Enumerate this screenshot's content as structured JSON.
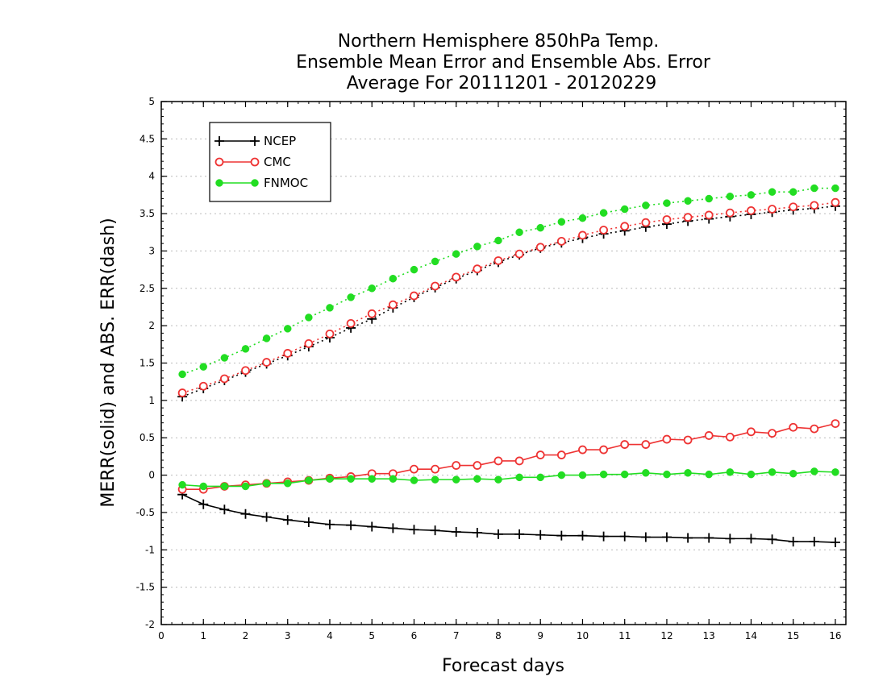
{
  "chart_data": {
    "type": "line",
    "title_lines": [
      "Northern Hemisphere 850hPa Temp.",
      "Ensemble Mean Error and Ensemble Abs. Error",
      "Average For 20111201 - 20120229"
    ],
    "xlabel": "Forecast days",
    "ylabel": "MERR(solid) and ABS. ERR(dash)",
    "xlim": [
      0,
      16.25
    ],
    "ylim": [
      -2,
      5
    ],
    "xticks": [
      "0",
      "1",
      "2",
      "3",
      "4",
      "5",
      "6",
      "7",
      "8",
      "9",
      "10",
      "11",
      "12",
      "13",
      "14",
      "15",
      "16"
    ],
    "yticks": [
      "5",
      "4.5",
      "4",
      "3.5",
      "3",
      "2.5",
      "2",
      "1.5",
      "1",
      "0.5",
      "0",
      "-0.5",
      "-1",
      "-1.5",
      "-2"
    ],
    "grid": true,
    "legend_position": "top-left",
    "x": [
      0.5,
      1,
      1.5,
      2,
      2.5,
      3,
      3.5,
      4,
      4.5,
      5,
      5.5,
      6,
      6.5,
      7,
      7.5,
      8,
      8.5,
      9,
      9.5,
      10,
      10.5,
      11,
      11.5,
      12,
      12.5,
      13,
      13.5,
      14,
      14.5,
      15,
      15.5,
      16
    ],
    "series": [
      {
        "name": "NCEP",
        "color": "#000000",
        "marker": "plus",
        "abs_error": [
          1.05,
          1.16,
          1.27,
          1.38,
          1.49,
          1.6,
          1.72,
          1.84,
          1.97,
          2.09,
          2.24,
          2.38,
          2.51,
          2.63,
          2.74,
          2.85,
          2.95,
          3.04,
          3.11,
          3.17,
          3.23,
          3.27,
          3.32,
          3.36,
          3.4,
          3.43,
          3.46,
          3.49,
          3.52,
          3.55,
          3.57,
          3.6
        ],
        "mean_error": [
          -0.26,
          -0.39,
          -0.46,
          -0.52,
          -0.56,
          -0.6,
          -0.63,
          -0.66,
          -0.67,
          -0.69,
          -0.71,
          -0.73,
          -0.74,
          -0.76,
          -0.77,
          -0.79,
          -0.79,
          -0.8,
          -0.81,
          -0.81,
          -0.82,
          -0.82,
          -0.83,
          -0.83,
          -0.84,
          -0.84,
          -0.85,
          -0.85,
          -0.86,
          -0.89,
          -0.89,
          -0.9
        ]
      },
      {
        "name": "CMC",
        "color": "#ee3333",
        "marker": "open-circle",
        "abs_error": [
          1.1,
          1.19,
          1.29,
          1.4,
          1.51,
          1.63,
          1.76,
          1.89,
          2.03,
          2.16,
          2.28,
          2.4,
          2.53,
          2.65,
          2.76,
          2.87,
          2.96,
          3.05,
          3.13,
          3.21,
          3.28,
          3.33,
          3.38,
          3.42,
          3.45,
          3.48,
          3.51,
          3.54,
          3.56,
          3.59,
          3.61,
          3.65
        ],
        "mean_error": [
          -0.19,
          -0.19,
          -0.15,
          -0.13,
          -0.11,
          -0.09,
          -0.07,
          -0.04,
          -0.02,
          0.02,
          0.02,
          0.08,
          0.08,
          0.13,
          0.13,
          0.19,
          0.19,
          0.27,
          0.27,
          0.34,
          0.34,
          0.41,
          0.41,
          0.48,
          0.47,
          0.53,
          0.51,
          0.58,
          0.56,
          0.64,
          0.62,
          0.69
        ]
      },
      {
        "name": "FNMOC",
        "color": "#22dd22",
        "marker": "filled-circle",
        "abs_error": [
          1.35,
          1.45,
          1.57,
          1.69,
          1.83,
          1.96,
          2.11,
          2.24,
          2.38,
          2.5,
          2.63,
          2.75,
          2.86,
          2.96,
          3.06,
          3.14,
          3.25,
          3.31,
          3.39,
          3.44,
          3.51,
          3.56,
          3.61,
          3.64,
          3.67,
          3.7,
          3.73,
          3.75,
          3.79,
          3.79,
          3.84,
          3.84
        ],
        "mean_error": [
          -0.13,
          -0.15,
          -0.15,
          -0.15,
          -0.11,
          -0.11,
          -0.07,
          -0.05,
          -0.05,
          -0.05,
          -0.05,
          -0.07,
          -0.06,
          -0.06,
          -0.05,
          -0.06,
          -0.03,
          -0.03,
          0.0,
          0.0,
          0.01,
          0.01,
          0.03,
          0.01,
          0.03,
          0.01,
          0.04,
          0.01,
          0.04,
          0.02,
          0.05,
          0.04
        ]
      }
    ]
  }
}
